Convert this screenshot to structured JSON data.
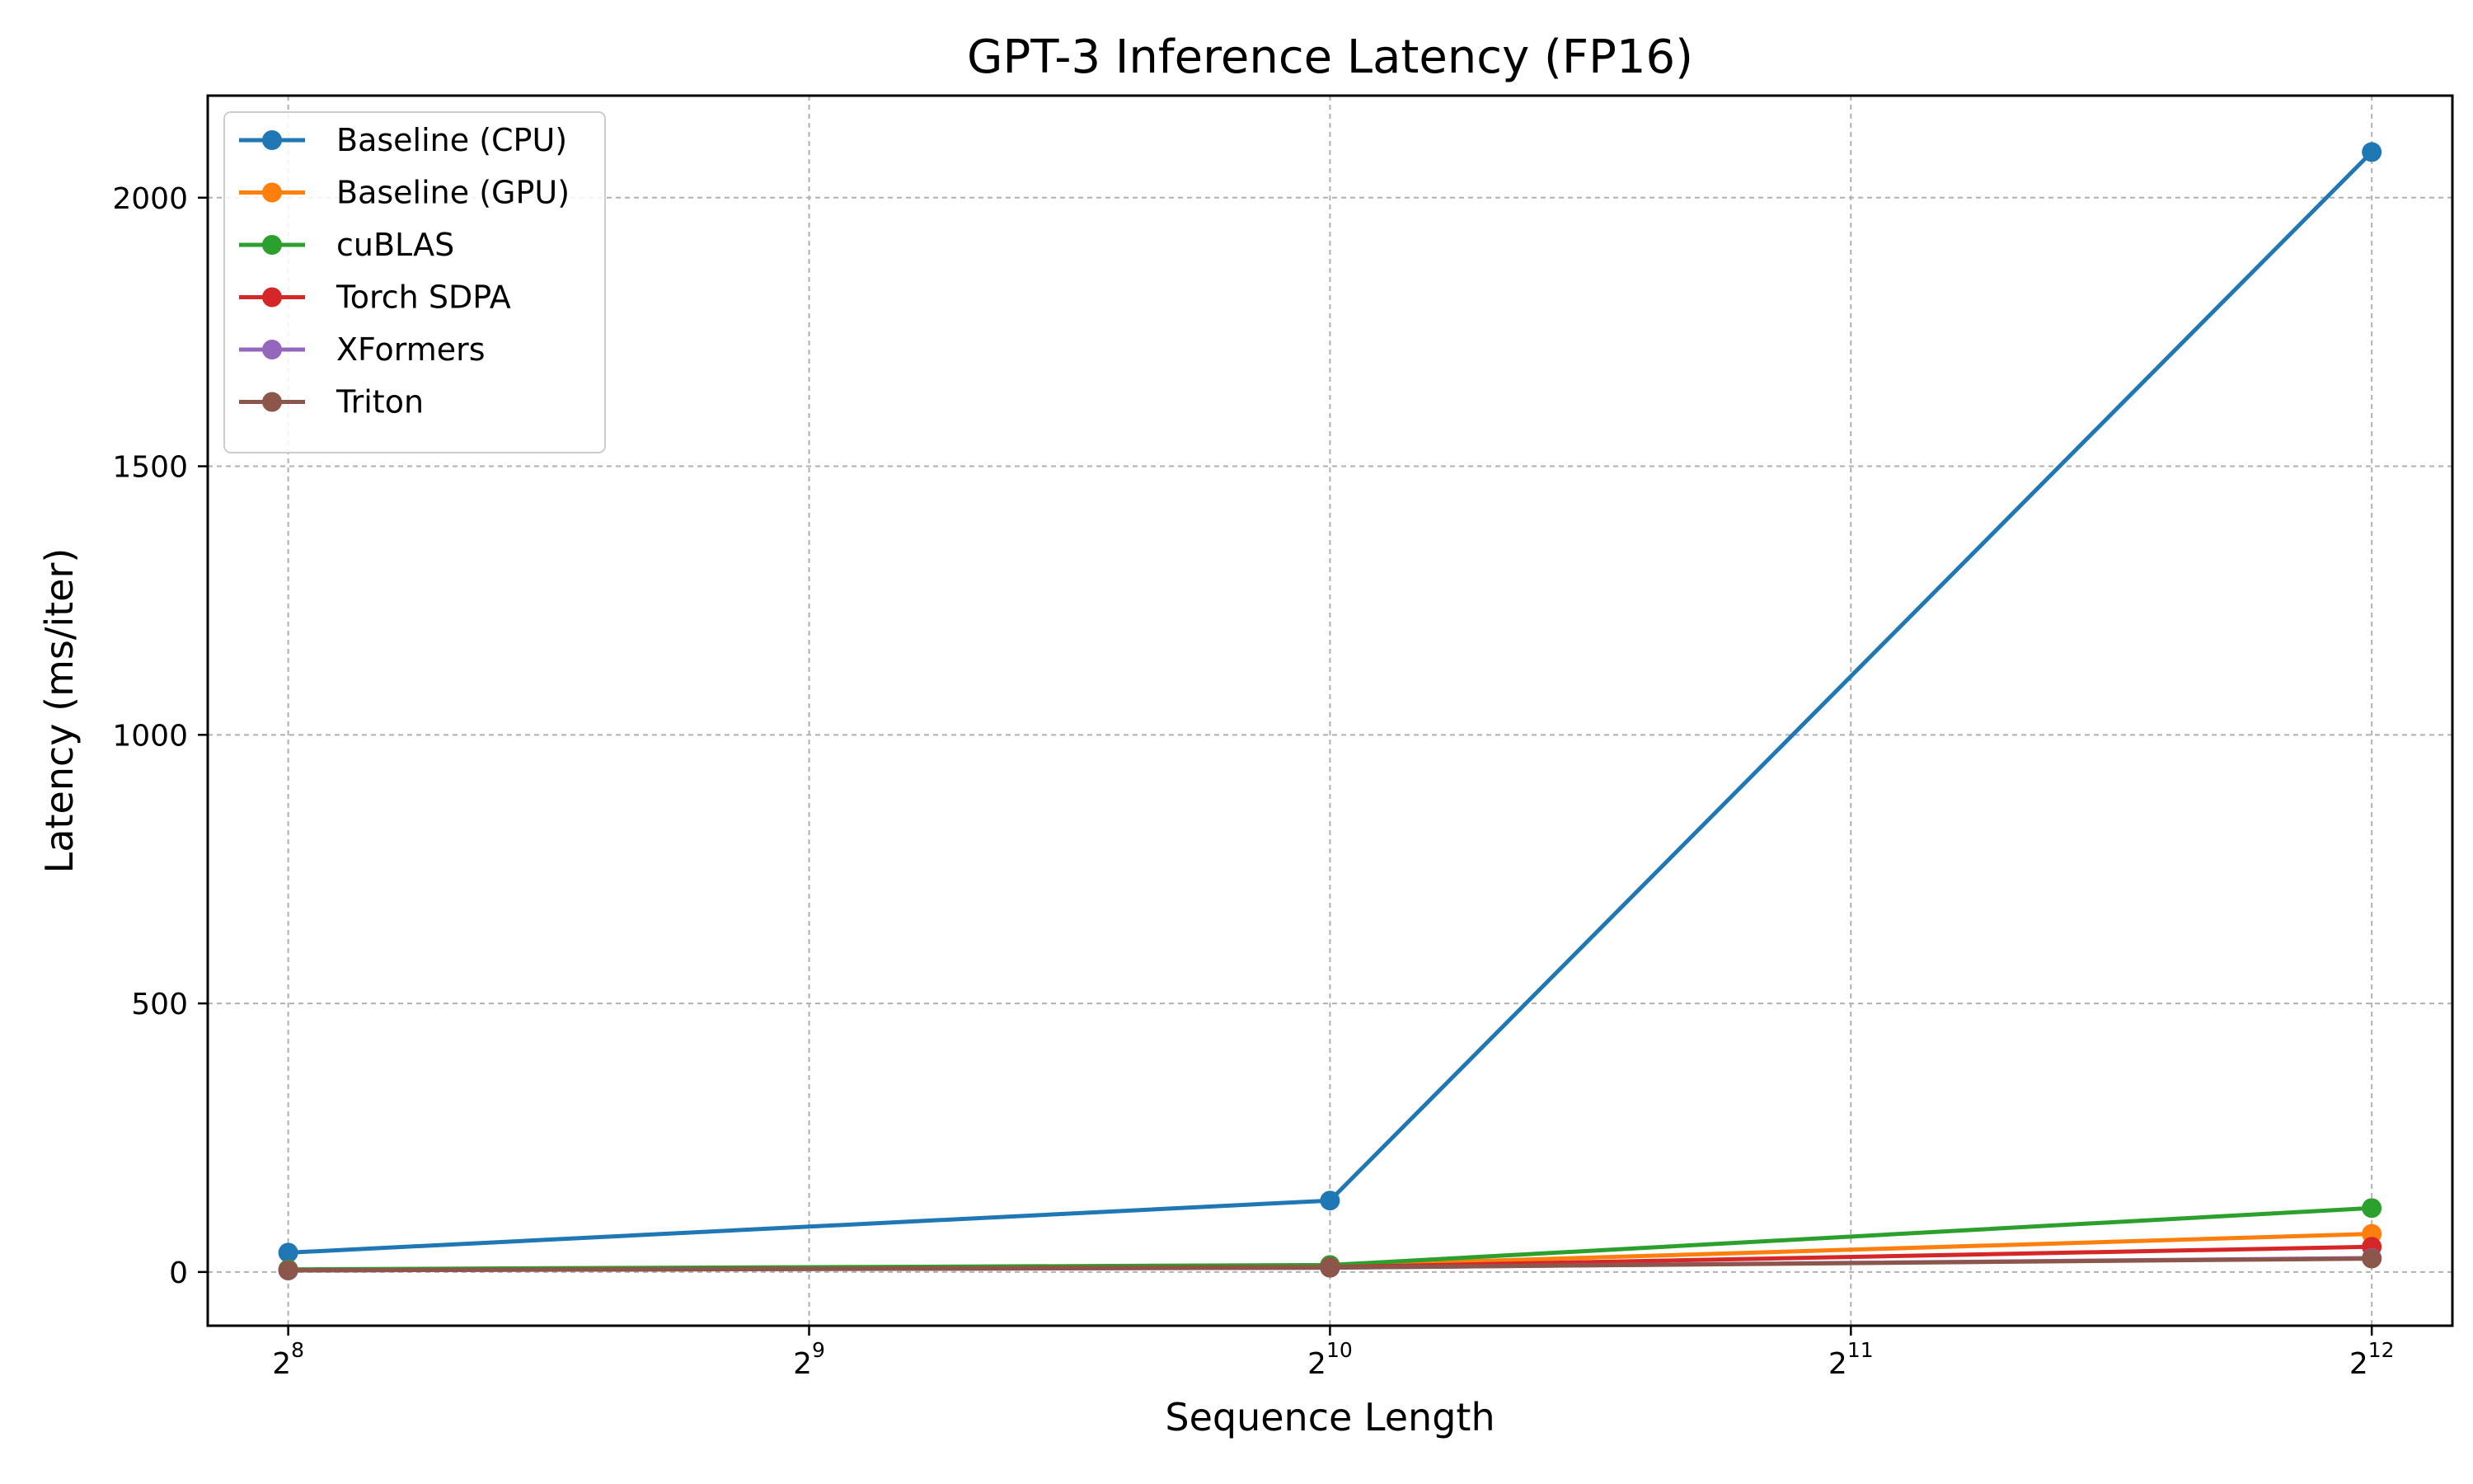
{
  "chart_data": {
    "type": "line",
    "title": "GPT-3 Inference Latency (FP16)",
    "xlabel": "Sequence Length",
    "ylabel": "Latency (ms/iter)",
    "x_scale": "log2",
    "x": [
      256,
      1024,
      4096
    ],
    "xlim": [
      230,
      4560
    ],
    "ylim": [
      -100,
      2190
    ],
    "x_ticks": [
      {
        "value": 256,
        "base": "2",
        "exp": "8"
      },
      {
        "value": 512,
        "base": "2",
        "exp": "9"
      },
      {
        "value": 1024,
        "base": "2",
        "exp": "10"
      },
      {
        "value": 2048,
        "base": "2",
        "exp": "11"
      },
      {
        "value": 4096,
        "base": "2",
        "exp": "12"
      }
    ],
    "y_ticks": [
      0,
      500,
      1000,
      1500,
      2000
    ],
    "grid": true,
    "legend_position": "top-left",
    "series": [
      {
        "name": "Baseline (CPU)",
        "color": "#1f77b4",
        "values": [
          36,
          133,
          2085
        ]
      },
      {
        "name": "Baseline (GPU)",
        "color": "#ff7f0e",
        "values": [
          4,
          12,
          71
        ]
      },
      {
        "name": "cuBLAS",
        "color": "#2ca02c",
        "values": [
          5,
          13,
          119
        ]
      },
      {
        "name": "Torch SDPA",
        "color": "#d62728",
        "values": [
          3,
          9,
          47
        ]
      },
      {
        "name": "XFormers",
        "color": "#9467bd",
        "values": [
          3,
          8,
          26
        ]
      },
      {
        "name": "Triton",
        "color": "#8c564b",
        "values": [
          3,
          8,
          25
        ]
      }
    ]
  }
}
